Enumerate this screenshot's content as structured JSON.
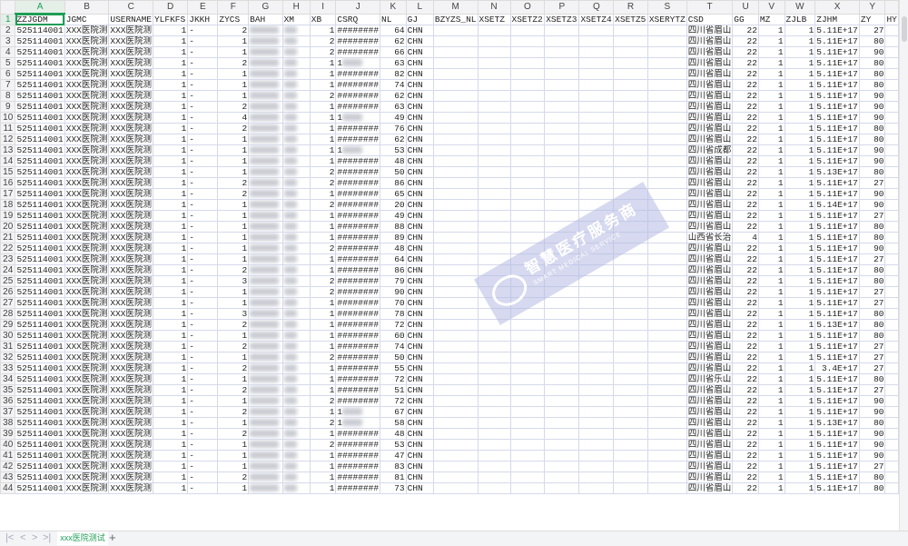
{
  "columns": [
    "A",
    "B",
    "C",
    "D",
    "E",
    "F",
    "G",
    "H",
    "I",
    "J",
    "K",
    "L",
    "M",
    "N",
    "O",
    "P",
    "Q",
    "R",
    "S",
    "T",
    "U",
    "V",
    "W",
    "X",
    "Y",
    ""
  ],
  "headers": [
    "ZZJGDM",
    "JGMC",
    "USERNAME",
    "YLFKFS",
    "JKKH",
    "ZYCS",
    "BAH",
    "XM",
    "XB",
    "CSRQ",
    "NL",
    "GJ",
    "BZYZS_NL",
    "XSETZ",
    "XSETZ2",
    "XSETZ3",
    "XSETZ4",
    "XSETZ5",
    "XSERYTZ",
    "CSD",
    "GG",
    "MZ",
    "ZJLB",
    "ZJHM",
    "ZY",
    "HY"
  ],
  "numeric_columns": [
    3,
    5,
    8,
    10,
    20,
    21,
    22,
    23,
    24
  ],
  "blurred_columns": [
    6,
    7
  ],
  "selected_cell": "A1",
  "rows": [
    {
      "n": "2",
      "F": "2",
      "I": "1",
      "J": "########",
      "K": "64",
      "T": "四川省眉山",
      "U": "22",
      "X": "5.11E+17",
      "Y": "27"
    },
    {
      "n": "3",
      "F": "1",
      "I": "2",
      "J": "########",
      "K": "62",
      "T": "四川省眉山",
      "U": "22",
      "X": "5.11E+17",
      "Y": "80"
    },
    {
      "n": "4",
      "F": "1",
      "I": "2",
      "J": "########",
      "K": "66",
      "T": "四川省眉山",
      "U": "22",
      "X": "5.11E+17",
      "Y": "90"
    },
    {
      "n": "5",
      "F": "2",
      "I": "1",
      "J": "1",
      "K": "63",
      "T": "四川省眉山",
      "U": "22",
      "X": "5.11E+17",
      "Y": "80"
    },
    {
      "n": "6",
      "F": "1",
      "I": "1",
      "J": "########",
      "K": "82",
      "T": "四川省眉山",
      "U": "22",
      "X": "5.11E+17",
      "Y": "80"
    },
    {
      "n": "7",
      "F": "1",
      "I": "1",
      "J": "########",
      "K": "74",
      "T": "四川省眉山",
      "U": "22",
      "X": "5.11E+17",
      "Y": "80"
    },
    {
      "n": "8",
      "F": "1",
      "I": "2",
      "J": "########",
      "K": "62",
      "T": "四川省眉山",
      "U": "22",
      "X": "5.11E+17",
      "Y": "90"
    },
    {
      "n": "9",
      "F": "2",
      "I": "1",
      "J": "########",
      "K": "63",
      "T": "四川省眉山",
      "U": "22",
      "X": "5.11E+17",
      "Y": "90"
    },
    {
      "n": "10",
      "F": "4",
      "I": "1",
      "J": "1",
      "K": "49",
      "T": "四川省眉山",
      "U": "22",
      "X": "5.11E+17",
      "Y": "90"
    },
    {
      "n": "11",
      "F": "2",
      "I": "1",
      "J": "########",
      "K": "76",
      "T": "四川省眉山",
      "U": "22",
      "X": "5.11E+17",
      "Y": "80"
    },
    {
      "n": "12",
      "F": "1",
      "I": "1",
      "J": "########",
      "K": "62",
      "T": "四川省眉山",
      "U": "22",
      "X": "5.11E+17",
      "Y": "80"
    },
    {
      "n": "13",
      "F": "1",
      "I": "1",
      "J": "1",
      "K": "53",
      "T": "四川省成都",
      "U": "22",
      "X": "5.11E+17",
      "Y": "90"
    },
    {
      "n": "14",
      "F": "1",
      "I": "1",
      "J": "########",
      "K": "48",
      "T": "四川省眉山",
      "U": "22",
      "X": "5.11E+17",
      "Y": "90"
    },
    {
      "n": "15",
      "F": "1",
      "I": "2",
      "J": "########",
      "K": "50",
      "T": "四川省眉山",
      "U": "22",
      "X": "5.13E+17",
      "Y": "80"
    },
    {
      "n": "16",
      "F": "2",
      "I": "2",
      "J": "########",
      "K": "86",
      "T": "四川省眉山",
      "U": "22",
      "X": "5.11E+17",
      "Y": "27"
    },
    {
      "n": "17",
      "F": "2",
      "I": "1",
      "J": "########",
      "K": "65",
      "T": "四川省眉山",
      "U": "22",
      "X": "5.11E+17",
      "Y": "90"
    },
    {
      "n": "18",
      "F": "1",
      "I": "2",
      "J": "########",
      "K": "20",
      "T": "四川省眉山",
      "U": "22",
      "X": "5.14E+17",
      "Y": "90"
    },
    {
      "n": "19",
      "F": "1",
      "I": "1",
      "J": "########",
      "K": "49",
      "T": "四川省眉山",
      "U": "22",
      "X": "5.11E+17",
      "Y": "27"
    },
    {
      "n": "20",
      "F": "1",
      "I": "1",
      "J": "########",
      "K": "88",
      "T": "四川省眉山",
      "U": "22",
      "X": "5.11E+17",
      "Y": "80"
    },
    {
      "n": "21",
      "F": "1",
      "I": "1",
      "J": "########",
      "K": "89",
      "T": "山西省长治",
      "U": "4",
      "X": "5.11E+17",
      "Y": "80"
    },
    {
      "n": "22",
      "F": "1",
      "I": "2",
      "J": "########",
      "K": "48",
      "T": "四川省眉山",
      "U": "22",
      "X": "5.11E+17",
      "Y": "90"
    },
    {
      "n": "23",
      "F": "1",
      "I": "1",
      "J": "########",
      "K": "64",
      "T": "四川省眉山",
      "U": "22",
      "X": "5.11E+17",
      "Y": "27"
    },
    {
      "n": "24",
      "F": "2",
      "I": "1",
      "J": "########",
      "K": "86",
      "T": "四川省眉山",
      "U": "22",
      "X": "5.11E+17",
      "Y": "80"
    },
    {
      "n": "25",
      "F": "3",
      "I": "2",
      "J": "########",
      "K": "79",
      "T": "四川省眉山",
      "U": "22",
      "X": "5.11E+17",
      "Y": "80"
    },
    {
      "n": "26",
      "F": "1",
      "I": "2",
      "J": "########",
      "K": "90",
      "T": "四川省眉山",
      "U": "22",
      "X": "5.11E+17",
      "Y": "27"
    },
    {
      "n": "27",
      "F": "1",
      "I": "1",
      "J": "########",
      "K": "70",
      "T": "四川省眉山",
      "U": "22",
      "X": "5.11E+17",
      "Y": "27"
    },
    {
      "n": "28",
      "F": "3",
      "I": "1",
      "J": "########",
      "K": "78",
      "T": "四川省眉山",
      "U": "22",
      "X": "5.11E+17",
      "Y": "80"
    },
    {
      "n": "29",
      "F": "2",
      "I": "1",
      "J": "########",
      "K": "72",
      "T": "四川省眉山",
      "U": "22",
      "X": "5.13E+17",
      "Y": "80"
    },
    {
      "n": "30",
      "F": "1",
      "I": "1",
      "J": "########",
      "K": "60",
      "T": "四川省眉山",
      "U": "22",
      "X": "5.11E+17",
      "Y": "80"
    },
    {
      "n": "31",
      "F": "2",
      "I": "1",
      "J": "########",
      "K": "74",
      "T": "四川省眉山",
      "U": "22",
      "X": "5.11E+17",
      "Y": "27"
    },
    {
      "n": "32",
      "F": "1",
      "I": "2",
      "J": "########",
      "K": "50",
      "T": "四川省眉山",
      "U": "22",
      "X": "5.11E+17",
      "Y": "27"
    },
    {
      "n": "33",
      "F": "2",
      "I": "1",
      "J": "########",
      "K": "55",
      "T": "四川省眉山",
      "U": "22",
      "X": "3.4E+17",
      "Y": "27"
    },
    {
      "n": "34",
      "F": "1",
      "I": "1",
      "J": "########",
      "K": "72",
      "T": "四川省乐山",
      "U": "22",
      "X": "5.11E+17",
      "Y": "80"
    },
    {
      "n": "35",
      "F": "2",
      "I": "1",
      "J": "########",
      "K": "51",
      "T": "四川省眉山",
      "U": "22",
      "X": "5.11E+17",
      "Y": "27"
    },
    {
      "n": "36",
      "F": "1",
      "I": "2",
      "J": "########",
      "K": "72",
      "T": "四川省眉山",
      "U": "22",
      "X": "5.11E+17",
      "Y": "90"
    },
    {
      "n": "37",
      "F": "2",
      "I": "1",
      "J": "1",
      "K": "67",
      "T": "四川省眉山",
      "U": "22",
      "X": "5.11E+17",
      "Y": "90"
    },
    {
      "n": "38",
      "F": "1",
      "I": "2",
      "J": "1",
      "K": "58",
      "T": "四川省眉山",
      "U": "22",
      "X": "5.13E+17",
      "Y": "80"
    },
    {
      "n": "39",
      "F": "2",
      "I": "1",
      "J": "########",
      "K": "48",
      "T": "四川省眉山",
      "U": "22",
      "X": "5.11E+17",
      "Y": "90"
    },
    {
      "n": "40",
      "F": "1",
      "I": "2",
      "J": "########",
      "K": "53",
      "T": "四川省眉山",
      "U": "22",
      "X": "5.11E+17",
      "Y": "90"
    },
    {
      "n": "41",
      "F": "1",
      "I": "1",
      "J": "########",
      "K": "47",
      "T": "四川省眉山",
      "U": "22",
      "X": "5.11E+17",
      "Y": "90"
    },
    {
      "n": "42",
      "F": "1",
      "I": "1",
      "J": "########",
      "K": "83",
      "T": "四川省眉山",
      "U": "22",
      "X": "5.11E+17",
      "Y": "27"
    },
    {
      "n": "43",
      "F": "2",
      "I": "1",
      "J": "########",
      "K": "81",
      "T": "四川省眉山",
      "U": "22",
      "X": "5.11E+17",
      "Y": "80"
    },
    {
      "n": "44",
      "F": "1",
      "I": "1",
      "J": "########",
      "K": "73",
      "T": "四川省眉山",
      "U": "22",
      "X": "5.11E+17",
      "Y": "80"
    }
  ],
  "row_defaults": {
    "A": "525114001",
    "B": "XXX医院测",
    "C": "XXX医院测",
    "D": "1",
    "E": "-",
    "L": "CHN",
    "V": "1",
    "W": "1"
  },
  "sheet_tabs": [
    {
      "label": "xxx医院测试",
      "active": true
    }
  ],
  "tab_nav": {
    "first": "|<",
    "prev": "<",
    "next": ">",
    "last": ">|",
    "add": "+"
  },
  "watermark": {
    "cn": "智慧医疗服务商",
    "en": "SMART MEDICAL SERVICE"
  },
  "colors": {
    "accent": "#1e9e57",
    "grid": "#d5d9ea",
    "header_bg": "#f3f3f5"
  }
}
